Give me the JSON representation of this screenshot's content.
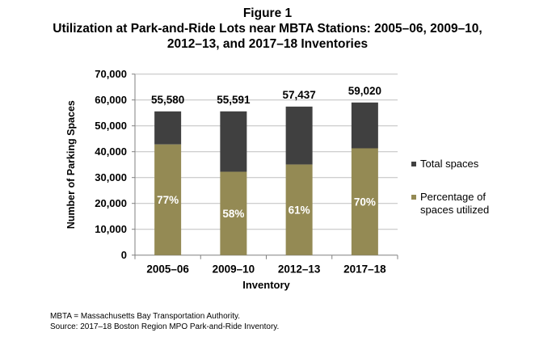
{
  "chart_data": {
    "type": "bar",
    "stacked": true,
    "title_lines": [
      "Figure 1",
      "Utilization at Park-and-Ride Lots near MBTA Stations: 2005–06, 2009–10,",
      "2012–13, and 2017–18 Inventories"
    ],
    "xlabel": "Inventory",
    "ylabel": "Number of Parking Spaces",
    "ylim": [
      0,
      70000
    ],
    "yticks": [
      0,
      10000,
      20000,
      30000,
      40000,
      50000,
      60000,
      70000
    ],
    "ytick_labels": [
      "0",
      "10,000",
      "20,000",
      "30,000",
      "40,000",
      "50,000",
      "60,000",
      "70,000"
    ],
    "categories": [
      "2005–06",
      "2009–10",
      "2012–13",
      "2017–18"
    ],
    "total_spaces": [
      55580,
      55591,
      57437,
      59020
    ],
    "total_labels": [
      "55,580",
      "55,591",
      "57,437",
      "59,020"
    ],
    "percent_utilized": [
      77,
      58,
      61,
      70
    ],
    "percent_labels": [
      "77%",
      "58%",
      "61%",
      "70%"
    ],
    "series": [
      {
        "name": "Total spaces",
        "color": "#404040"
      },
      {
        "name": "Percentage of spaces utilized",
        "name_lines": [
          "Percentage of",
          "spaces utilized"
        ],
        "color": "#948a54"
      }
    ],
    "grid": true,
    "legend_position": "right"
  },
  "footnotes": [
    "MBTA = Massachusetts Bay Transportation Authority.",
    "Source: 2017–18 Boston Region MPO Park-and-Ride Inventory."
  ]
}
